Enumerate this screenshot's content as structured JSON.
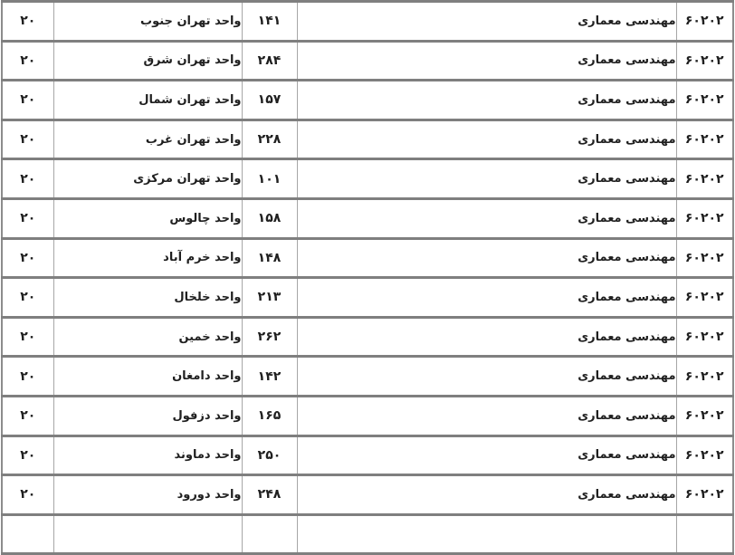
{
  "page": {
    "language": "fa",
    "direction": "rtl"
  },
  "colors": {
    "row_border": "#7f7f7f",
    "column_border": "#a6a6a6",
    "text": "#1f1f1f",
    "code_text": "#1e3a6e",
    "background": "#ffffff"
  },
  "table": {
    "rows": [
      {
        "code": "۶۰۲۰۲",
        "major": "مهندسی معماری",
        "count": "۱۴۱",
        "unit": "واحد تهران جنوب",
        "capacity": "۲۰"
      },
      {
        "code": "۶۰۲۰۲",
        "major": "مهندسی معماری",
        "count": "۲۸۴",
        "unit": "واحد تهران شرق",
        "capacity": "۲۰"
      },
      {
        "code": "۶۰۲۰۲",
        "major": "مهندسی معماری",
        "count": "۱۵۷",
        "unit": "واحد تهران شمال",
        "capacity": "۲۰"
      },
      {
        "code": "۶۰۲۰۲",
        "major": "مهندسی معماری",
        "count": "۲۲۸",
        "unit": "واحد تهران غرب",
        "capacity": "۲۰"
      },
      {
        "code": "۶۰۲۰۲",
        "major": "مهندسی معماری",
        "count": "۱۰۱",
        "unit": "واحد تهران مرکزی",
        "capacity": "۲۰"
      },
      {
        "code": "۶۰۲۰۲",
        "major": "مهندسی معماری",
        "count": "۱۵۸",
        "unit": "واحد چالوس",
        "capacity": "۲۰"
      },
      {
        "code": "۶۰۲۰۲",
        "major": "مهندسی معماری",
        "count": "۱۴۸",
        "unit": "واحد خرم آباد",
        "capacity": "۲۰"
      },
      {
        "code": "۶۰۲۰۲",
        "major": "مهندسی معماری",
        "count": "۲۱۳",
        "unit": "واحد خلخال",
        "capacity": "۲۰"
      },
      {
        "code": "۶۰۲۰۲",
        "major": "مهندسی معماری",
        "count": "۲۶۲",
        "unit": "واحد خمین",
        "capacity": "۲۰"
      },
      {
        "code": "۶۰۲۰۲",
        "major": "مهندسی معماری",
        "count": "۱۴۲",
        "unit": "واحد دامغان",
        "capacity": "۲۰"
      },
      {
        "code": "۶۰۲۰۲",
        "major": "مهندسی معماری",
        "count": "۱۶۵",
        "unit": "واحد دزفول",
        "capacity": "۲۰"
      },
      {
        "code": "۶۰۲۰۲",
        "major": "مهندسی معماری",
        "count": "۲۵۰",
        "unit": "واحد دماوند",
        "capacity": "۲۰"
      },
      {
        "code": "۶۰۲۰۲",
        "major": "مهندسی معماری",
        "count": "۲۴۸",
        "unit": "واحد دورود",
        "capacity": "۲۰"
      },
      {
        "code": "",
        "major": "",
        "count": "",
        "unit": "",
        "capacity": ""
      }
    ]
  }
}
